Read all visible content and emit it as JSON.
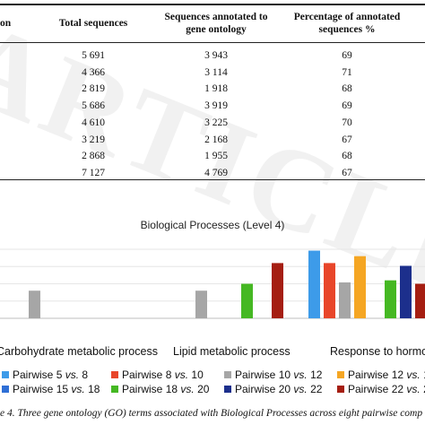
{
  "table": {
    "headers": {
      "col1": "on",
      "col2": "Total sequences",
      "col3_line1": "Sequences annotated to",
      "col3_line2": "gene ontology",
      "col4_line1": "Percentage of annotated",
      "col4_line2": "sequences %"
    },
    "rows": [
      {
        "total": "5 691",
        "annotated": "3 943",
        "percent": "69"
      },
      {
        "total": "4 366",
        "annotated": "3 114",
        "percent": "71"
      },
      {
        "total": "2 819",
        "annotated": "1 918",
        "percent": "68"
      },
      {
        "total": "5 686",
        "annotated": "3 919",
        "percent": "69"
      },
      {
        "total": "4 610",
        "annotated": "3 225",
        "percent": "70"
      },
      {
        "total": "3 219",
        "annotated": "2 168",
        "percent": "67"
      },
      {
        "total": "2 868",
        "annotated": "1 955",
        "percent": "68"
      },
      {
        "total": "7 127",
        "annotated": "4 769",
        "percent": "67"
      }
    ]
  },
  "watermark": "ARTICLE",
  "chart_data": {
    "type": "bar",
    "title": "Biological Processes (Level 4)",
    "categories": [
      "Carbohydrate metabolic process",
      "Lipid metabolic process",
      "Response to hormo"
    ],
    "ylim": [
      0,
      10
    ],
    "grid": true,
    "legend_placement": "bottom",
    "series": [
      {
        "name": "Pairwise 5 vs. 8",
        "color": "#3d9be9",
        "values": [
          null,
          null,
          9.8
        ]
      },
      {
        "name": "Pairwise 8 vs. 10",
        "color": "#e8462a",
        "values": [
          null,
          null,
          8.0
        ]
      },
      {
        "name": "Pairwise 10 vs. 12",
        "color": "#a6a6a6",
        "values": [
          4.0,
          4.0,
          5.2
        ]
      },
      {
        "name": "Pairwise 12 vs. 1",
        "color": "#f5a623",
        "values": [
          null,
          null,
          9.0
        ]
      },
      {
        "name": "Pairwise 15 vs. 18",
        "color": "#2f6fd6",
        "values": [
          null,
          null,
          null
        ]
      },
      {
        "name": "Pairwise 18 vs. 20",
        "color": "#45b823",
        "values": [
          null,
          5.0,
          5.5
        ]
      },
      {
        "name": "Pairwise 20 vs. 22",
        "color": "#1c2f8c",
        "values": [
          null,
          null,
          7.6
        ]
      },
      {
        "name": "Pairwise 22 vs. 2",
        "color": "#a51e12",
        "values": [
          null,
          8.0,
          5.0
        ]
      }
    ]
  },
  "legend": [
    {
      "prefix": "Pairwise ",
      "a": "5",
      "vs": "vs.",
      "b": "8"
    },
    {
      "prefix": "Pairwise ",
      "a": "8",
      "vs": "vs.",
      "b": "10"
    },
    {
      "prefix": "Pairwise ",
      "a": "10",
      "vs": "vs.",
      "b": "12"
    },
    {
      "prefix": "Pairwise ",
      "a": "12",
      "vs": "vs.",
      "b": "1"
    },
    {
      "prefix": "Pairwise ",
      "a": "15",
      "vs": "vs.",
      "b": "18"
    },
    {
      "prefix": "Pairwise ",
      "a": "18",
      "vs": "vs.",
      "b": "20"
    },
    {
      "prefix": "Pairwise ",
      "a": "20",
      "vs": "vs.",
      "b": "22"
    },
    {
      "prefix": "Pairwise ",
      "a": "22",
      "vs": "vs.",
      "b": "2"
    }
  ],
  "caption": "e 4. Three gene ontology (GO) terms associated with Biological Processes across eight pairwise comp"
}
